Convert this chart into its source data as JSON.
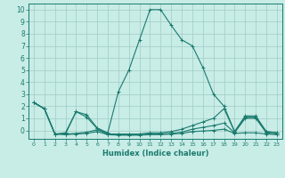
{
  "xlabel": "Humidex (Indice chaleur)",
  "background_color": "#c8ece6",
  "grid_color": "#a0ccc6",
  "line_color": "#1a7a6e",
  "spine_color": "#1a7a6e",
  "xlim": [
    -0.5,
    23.5
  ],
  "ylim": [
    -0.7,
    10.5
  ],
  "xticks": [
    0,
    1,
    2,
    3,
    4,
    5,
    6,
    7,
    8,
    9,
    10,
    11,
    12,
    13,
    14,
    15,
    16,
    17,
    18,
    19,
    20,
    21,
    22,
    23
  ],
  "yticks": [
    0,
    1,
    2,
    3,
    4,
    5,
    6,
    7,
    8,
    9,
    10
  ],
  "lines": [
    {
      "x": [
        0,
        1,
        2,
        3,
        4,
        5,
        6,
        7,
        8,
        9,
        10,
        11,
        12,
        13,
        14,
        15,
        16,
        17,
        18,
        19,
        20,
        21,
        22,
        23
      ],
      "y": [
        2.3,
        1.8,
        -0.3,
        -0.2,
        1.55,
        1.3,
        0.2,
        -0.2,
        3.2,
        5.0,
        7.5,
        10.0,
        10.0,
        8.7,
        7.5,
        7.0,
        5.2,
        3.0,
        2.0,
        -0.1,
        1.2,
        1.2,
        -0.1,
        -0.2
      ]
    },
    {
      "x": [
        0,
        1,
        2,
        3,
        4,
        5,
        6,
        7,
        8,
        9,
        10,
        11,
        12,
        13,
        14,
        15,
        16,
        17,
        18,
        19,
        20,
        21,
        22,
        23
      ],
      "y": [
        2.3,
        1.8,
        -0.3,
        -0.3,
        1.55,
        1.1,
        0.15,
        -0.3,
        -0.3,
        -0.3,
        -0.3,
        -0.2,
        -0.2,
        -0.1,
        0.1,
        0.4,
        0.7,
        1.0,
        1.8,
        -0.1,
        1.1,
        1.1,
        -0.1,
        -0.2
      ]
    },
    {
      "x": [
        0,
        1,
        2,
        3,
        4,
        5,
        6,
        7,
        8,
        9,
        10,
        11,
        12,
        13,
        14,
        15,
        16,
        17,
        18,
        19,
        20,
        21,
        22,
        23
      ],
      "y": [
        2.3,
        1.8,
        -0.3,
        -0.3,
        -0.25,
        -0.15,
        0.05,
        -0.3,
        -0.35,
        -0.35,
        -0.35,
        -0.3,
        -0.3,
        -0.25,
        -0.15,
        0.1,
        0.25,
        0.4,
        0.6,
        -0.2,
        1.0,
        1.0,
        -0.2,
        -0.3
      ]
    },
    {
      "x": [
        0,
        1,
        2,
        3,
        4,
        5,
        6,
        7,
        8,
        9,
        10,
        11,
        12,
        13,
        14,
        15,
        16,
        17,
        18,
        19,
        20,
        21,
        22,
        23
      ],
      "y": [
        2.3,
        1.8,
        -0.3,
        -0.35,
        -0.3,
        -0.25,
        -0.1,
        -0.35,
        -0.4,
        -0.4,
        -0.4,
        -0.35,
        -0.35,
        -0.3,
        -0.25,
        -0.1,
        -0.05,
        0.0,
        0.1,
        -0.25,
        -0.2,
        -0.2,
        -0.3,
        -0.35
      ]
    }
  ]
}
